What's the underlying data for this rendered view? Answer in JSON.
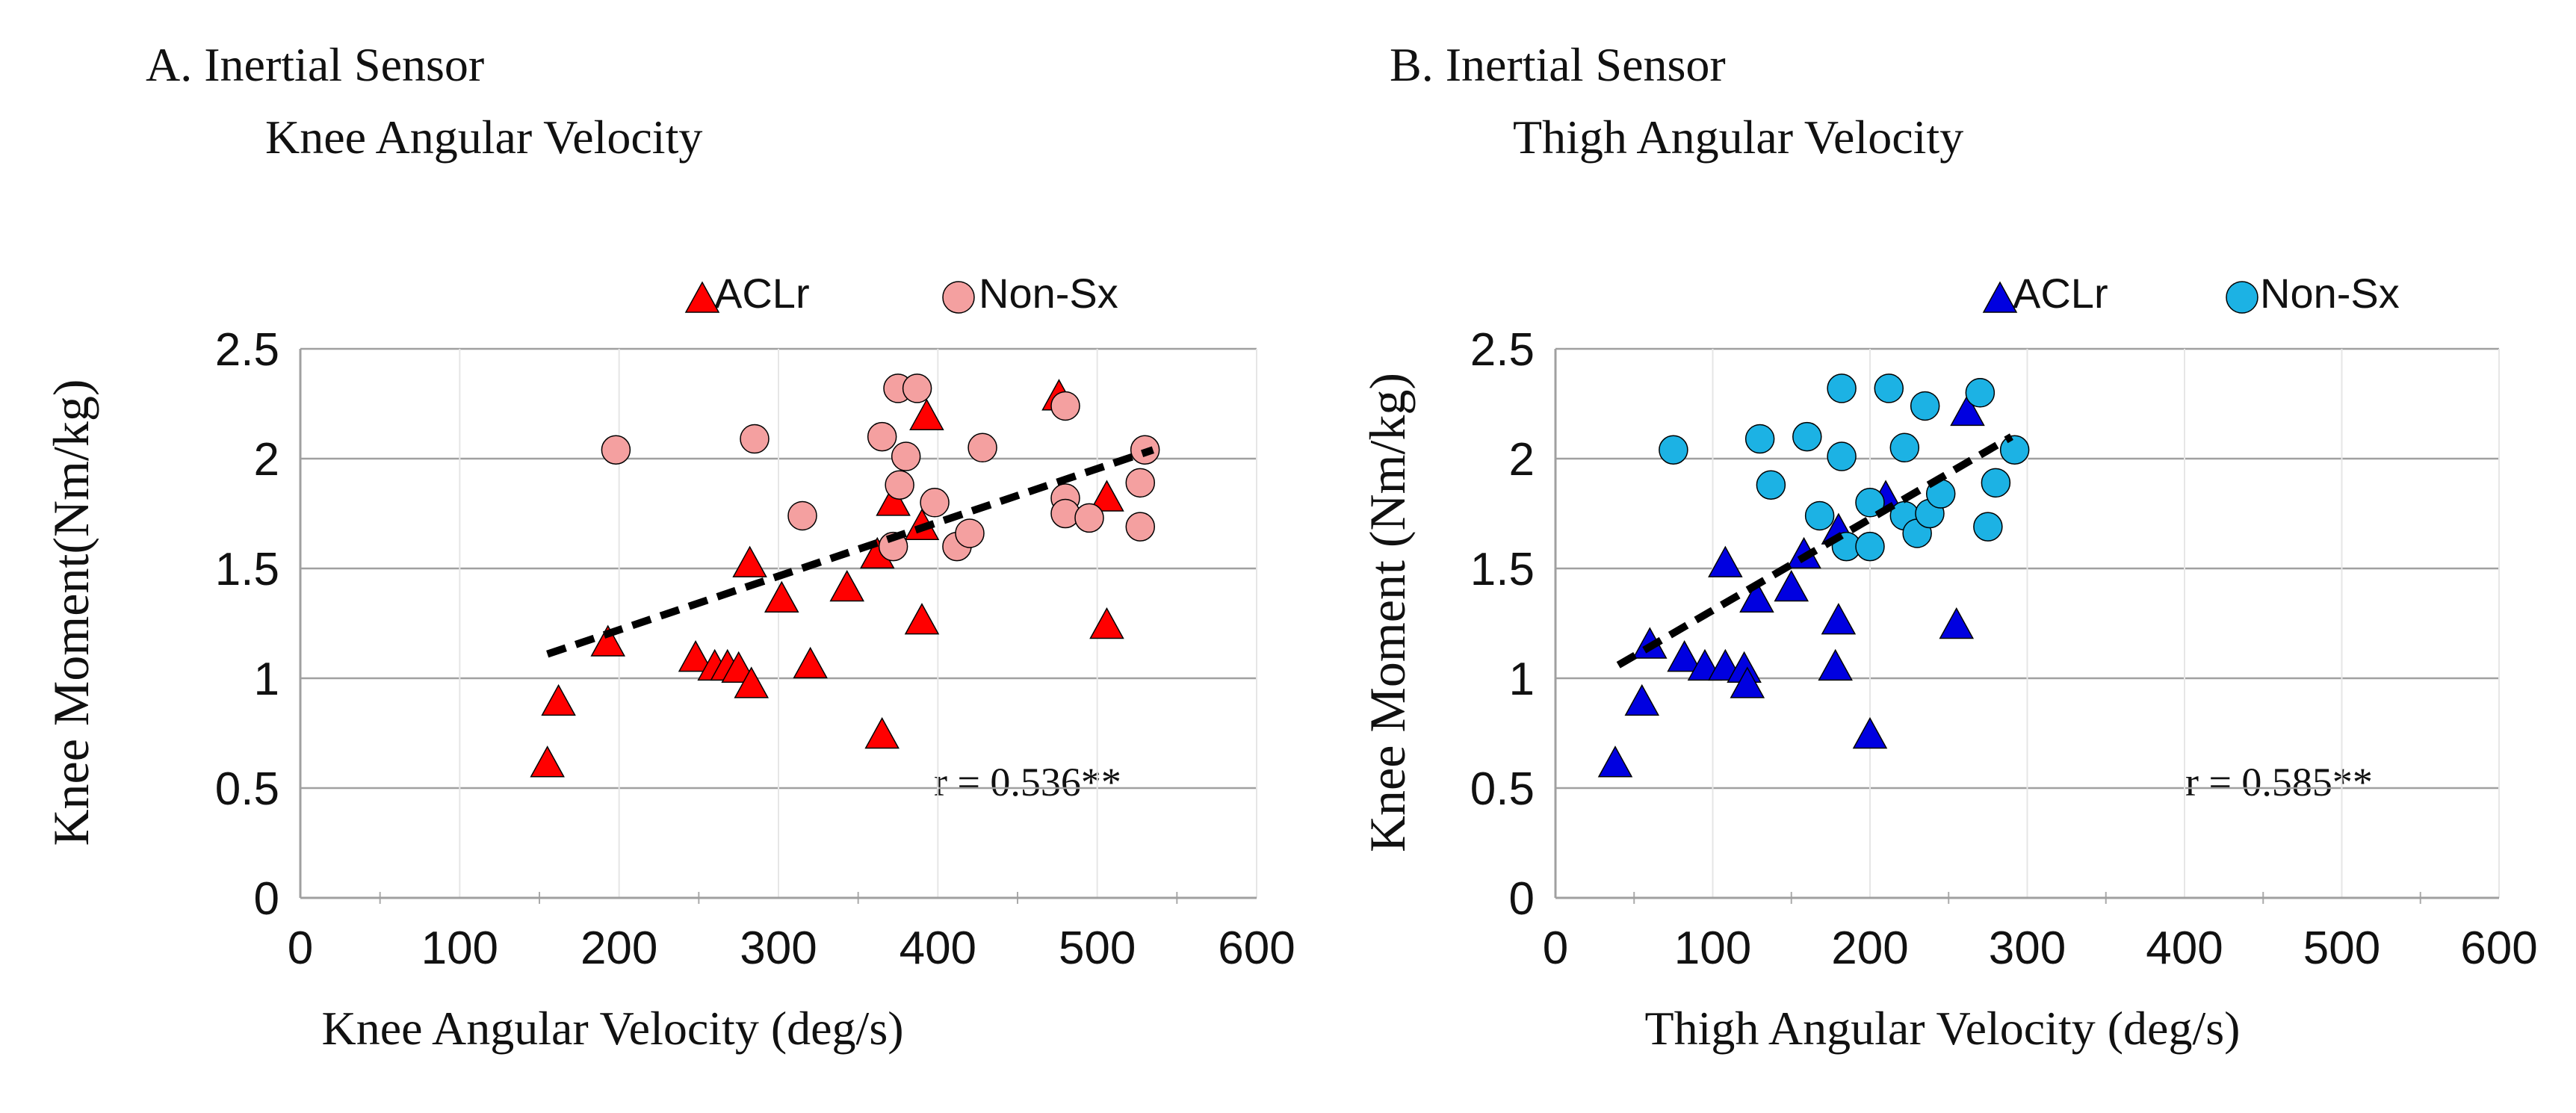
{
  "chart_data": [
    {
      "type": "scatter",
      "panel_title": "A. Inertial Sensor",
      "panel_subtitle": "Knee Angular Velocity",
      "xlabel": "Knee Angular Velocity (deg/s)",
      "ylabel": "Knee Moment(Nm/kg)",
      "xlim": [
        0,
        600
      ],
      "ylim": [
        0,
        2.5
      ],
      "xticks": [
        "0",
        "100",
        "200",
        "300",
        "400",
        "500",
        "600"
      ],
      "yticks": [
        "0",
        "0.5",
        "1",
        "1.5",
        "2",
        "2.5"
      ],
      "grid": true,
      "legend": [
        "ACLr",
        "Non-Sx"
      ],
      "annotation": "r = 0.536**",
      "trendline": {
        "x": [
          155,
          535
        ],
        "y": [
          1.11,
          2.04
        ]
      },
      "series": [
        {
          "name": "ACLr",
          "marker": "triangle",
          "color": "#ff0000",
          "points": [
            [
              155,
              0.62
            ],
            [
              162,
              0.9
            ],
            [
              193,
              1.17
            ],
            [
              248,
              1.1
            ],
            [
              260,
              1.06
            ],
            [
              268,
              1.06
            ],
            [
              275,
              1.05
            ],
            [
              283,
              0.98
            ],
            [
              282,
              1.53
            ],
            [
              302,
              1.37
            ],
            [
              320,
              1.07
            ],
            [
              343,
              1.42
            ],
            [
              362,
              1.57
            ],
            [
              365,
              0.75
            ],
            [
              372,
              1.81
            ],
            [
              390,
              1.27
            ],
            [
              393,
              2.2
            ],
            [
              390,
              1.7
            ],
            [
              476,
              2.29
            ],
            [
              506,
              1.25
            ],
            [
              506,
              1.83
            ]
          ]
        },
        {
          "name": "Non-Sx",
          "marker": "circle",
          "color": "#f4a0a0",
          "points": [
            [
              198,
              2.04
            ],
            [
              285,
              2.09
            ],
            [
              315,
              1.74
            ],
            [
              365,
              2.1
            ],
            [
              375,
              2.32
            ],
            [
              387,
              2.32
            ],
            [
              380,
              2.01
            ],
            [
              376,
              1.88
            ],
            [
              372,
              1.6
            ],
            [
              398,
              1.8
            ],
            [
              412,
              1.6
            ],
            [
              420,
              1.66
            ],
            [
              428,
              2.05
            ],
            [
              480,
              2.24
            ],
            [
              480,
              1.82
            ],
            [
              480,
              1.75
            ],
            [
              495,
              1.73
            ],
            [
              530,
              2.04
            ],
            [
              527,
              1.89
            ],
            [
              527,
              1.69
            ]
          ]
        }
      ]
    },
    {
      "type": "scatter",
      "panel_title": "B. Inertial Sensor",
      "panel_subtitle": "Thigh Angular Velocity",
      "xlabel": "Thigh Angular Velocity (deg/s)",
      "ylabel": "Knee Moment (Nm/kg)",
      "xlim": [
        0,
        600
      ],
      "ylim": [
        0,
        2.5
      ],
      "xticks": [
        "0",
        "100",
        "200",
        "300",
        "400",
        "500",
        "600"
      ],
      "yticks": [
        "0",
        "0.5",
        "1",
        "1.5",
        "2",
        "2.5"
      ],
      "grid": true,
      "legend": [
        "ACLr",
        "Non-Sx"
      ],
      "annotation": "r = 0.585**",
      "trendline": {
        "x": [
          40,
          290
        ],
        "y": [
          1.06,
          2.1
        ]
      },
      "series": [
        {
          "name": "ACLr",
          "marker": "triangle",
          "color": "#0000e0",
          "points": [
            [
              38,
              0.62
            ],
            [
              55,
              0.9
            ],
            [
              60,
              1.16
            ],
            [
              82,
              1.1
            ],
            [
              95,
              1.06
            ],
            [
              108,
              1.06
            ],
            [
              120,
              1.05
            ],
            [
              122,
              0.98
            ],
            [
              108,
              1.53
            ],
            [
              128,
              1.37
            ],
            [
              150,
              1.42
            ],
            [
              158,
              1.57
            ],
            [
              178,
              1.06
            ],
            [
              180,
              1.27
            ],
            [
              180,
              1.68
            ],
            [
              200,
              0.75
            ],
            [
              210,
              1.83
            ],
            [
              255,
              1.25
            ],
            [
              262,
              2.22
            ]
          ]
        },
        {
          "name": "Non-Sx",
          "marker": "circle",
          "color": "#1cb2e4",
          "points": [
            [
              75,
              2.04
            ],
            [
              130,
              2.09
            ],
            [
              137,
              1.88
            ],
            [
              160,
              2.1
            ],
            [
              168,
              1.74
            ],
            [
              182,
              2.32
            ],
            [
              182,
              2.01
            ],
            [
              185,
              1.6
            ],
            [
              200,
              1.8
            ],
            [
              200,
              1.6
            ],
            [
              212,
              2.32
            ],
            [
              222,
              2.05
            ],
            [
              222,
              1.74
            ],
            [
              230,
              1.66
            ],
            [
              235,
              2.24
            ],
            [
              238,
              1.75
            ],
            [
              245,
              1.84
            ],
            [
              270,
              2.3
            ],
            [
              275,
              1.69
            ],
            [
              280,
              1.89
            ],
            [
              292,
              2.04
            ]
          ]
        }
      ]
    }
  ]
}
